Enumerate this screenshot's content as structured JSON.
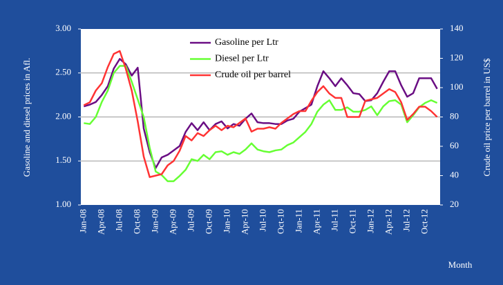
{
  "chart_data": {
    "type": "line",
    "x_label": "Month",
    "y_label": "Gasoline and diesel prices in Afl.",
    "y2_label": "Crude oil price per barrel in US$",
    "categories": [
      "Jan-08",
      null,
      null,
      "Apr-08",
      null,
      null,
      "Jul-08",
      null,
      null,
      "Oct-08",
      null,
      null,
      "Jan-09",
      null,
      null,
      "Apr-09",
      null,
      null,
      "Jul-09",
      null,
      null,
      "Oct-09",
      null,
      null,
      "Jan-10",
      null,
      null,
      "Apr-10",
      null,
      null,
      "Jul-10",
      null,
      null,
      "Oct-10",
      null,
      null,
      "Jan-11",
      null,
      null,
      "Apr-11",
      null,
      null,
      "Jul-11",
      null,
      null,
      "Oct-11",
      null,
      null,
      "Jan-12",
      null,
      null,
      "Apr-12",
      null,
      null,
      "Jul-12",
      null,
      null,
      "Oct-12",
      null,
      null
    ],
    "series": [
      {
        "name": "Gasoline per Ltr",
        "color": "#6a0d83",
        "axis": "y",
        "values": [
          2.12,
          2.14,
          2.17,
          2.25,
          2.35,
          2.55,
          2.66,
          2.6,
          2.47,
          2.56,
          1.87,
          1.6,
          1.42,
          1.54,
          1.57,
          1.62,
          1.67,
          1.83,
          1.93,
          1.85,
          1.94,
          1.85,
          1.92,
          1.95,
          1.87,
          1.92,
          1.9,
          1.98,
          2.04,
          1.94,
          1.93,
          1.93,
          1.92,
          1.92,
          1.96,
          1.98,
          2.06,
          2.1,
          2.14,
          2.35,
          2.52,
          2.44,
          2.35,
          2.44,
          2.36,
          2.27,
          2.26,
          2.18,
          2.19,
          2.27,
          2.4,
          2.52,
          2.52,
          2.36,
          2.23,
          2.27,
          2.44,
          2.44,
          2.44,
          2.32
        ]
      },
      {
        "name": "Diesel per Ltr",
        "color": "#66ff33",
        "axis": "y",
        "values": [
          1.93,
          1.92,
          2.0,
          2.17,
          2.3,
          2.5,
          2.58,
          2.58,
          2.4,
          2.2,
          2.0,
          1.65,
          1.38,
          1.34,
          1.27,
          1.27,
          1.33,
          1.4,
          1.52,
          1.5,
          1.57,
          1.52,
          1.6,
          1.61,
          1.57,
          1.6,
          1.58,
          1.63,
          1.7,
          1.63,
          1.61,
          1.6,
          1.62,
          1.63,
          1.68,
          1.71,
          1.77,
          1.83,
          1.92,
          2.06,
          2.14,
          2.19,
          2.08,
          2.08,
          2.11,
          2.06,
          2.06,
          2.08,
          2.12,
          2.02,
          2.12,
          2.18,
          2.19,
          2.14,
          1.94,
          2.02,
          2.11,
          2.16,
          2.19,
          2.16
        ]
      },
      {
        "name": "Crude oil per barrel",
        "color": "#ff3333",
        "axis": "y2",
        "values": [
          88,
          90,
          98,
          103,
          114,
          123,
          125,
          113,
          98,
          77,
          53,
          39,
          40,
          41,
          47,
          50,
          57,
          67,
          64,
          69,
          67,
          71,
          74,
          71,
          74,
          73,
          76,
          79,
          70,
          72,
          72,
          73,
          72,
          76,
          79,
          82,
          84,
          84,
          91,
          97,
          101,
          96,
          93,
          93,
          80,
          80,
          80,
          91,
          92,
          93,
          96,
          99,
          97,
          90,
          78,
          82,
          87,
          87,
          84,
          80
        ]
      }
    ],
    "ylim": [
      1.0,
      3.0
    ],
    "yticks": [
      {
        "value": 1.0,
        "label": "1.00"
      },
      {
        "value": 1.5,
        "label": "1.50"
      },
      {
        "value": 2.0,
        "label": "2.00"
      },
      {
        "value": 2.5,
        "label": "2.50"
      },
      {
        "value": 3.0,
        "label": "3.00"
      }
    ],
    "y2lim": [
      20,
      140
    ],
    "y2ticks": [
      20,
      40,
      60,
      80,
      100,
      120,
      140
    ],
    "grid": true,
    "legend": "top"
  }
}
